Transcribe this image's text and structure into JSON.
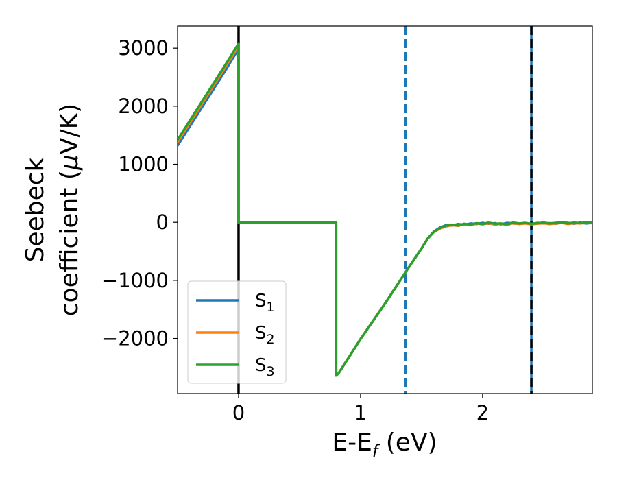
{
  "chart_data": {
    "type": "line",
    "xlabel": "E-E$_f$ (eV)",
    "xlabel_main": "E-E",
    "xlabel_sub": "f",
    "xlabel_tail": " (eV)",
    "ylabel_line1": "Seebeck",
    "ylabel_line2_a": "coefficient  (",
    "ylabel_line2_mu": "μ",
    "ylabel_line2_b": "V/K)",
    "xlim": [
      -0.5,
      2.9
    ],
    "ylim": [
      -2950,
      3380
    ],
    "xticks": [
      0,
      1,
      2
    ],
    "xtick_labels": [
      "0",
      "1",
      "2"
    ],
    "yticks": [
      -2000,
      -1000,
      0,
      1000,
      2000,
      3000
    ],
    "ytick_labels": [
      "−2000",
      "−1000",
      "0",
      "1000",
      "2000",
      "3000"
    ],
    "grid": false,
    "legend_position": "lower-left",
    "series": [
      {
        "name": "S1",
        "legend_main": "S",
        "legend_sub": "1",
        "color": "#1f77b4",
        "x": [
          -0.5,
          -0.3,
          -0.1,
          0.0,
          0.0,
          0.02,
          0.2,
          0.4,
          0.6,
          0.8,
          0.8,
          0.82,
          1.0,
          1.2,
          1.4,
          1.5,
          1.55,
          1.6,
          1.65,
          1.7,
          1.75,
          1.8,
          1.85,
          1.9,
          1.95,
          2.0,
          2.05,
          2.1,
          2.15,
          2.2,
          2.25,
          2.3,
          2.35,
          2.4,
          2.45,
          2.5,
          2.55,
          2.6,
          2.65,
          2.7,
          2.75,
          2.8,
          2.85,
          2.9
        ],
        "y": [
          1320,
          1980,
          2640,
          2990,
          0,
          0,
          0,
          0,
          0,
          0,
          -2640,
          -2600,
          -2010,
          -1400,
          -760,
          -450,
          -280,
          -160,
          -90,
          -50,
          -55,
          -30,
          -45,
          -20,
          -30,
          -10,
          -25,
          -15,
          -35,
          -10,
          -20,
          -25,
          -15,
          -30,
          -10,
          -20,
          -15,
          -25,
          -5,
          -10,
          -25,
          -5,
          -20,
          -10
        ]
      },
      {
        "name": "S2",
        "legend_main": "S",
        "legend_sub": "2",
        "color": "#ff7f0e",
        "x": [
          -0.5,
          -0.3,
          -0.1,
          0.0,
          0.0,
          0.02,
          0.2,
          0.4,
          0.6,
          0.8,
          0.8,
          0.82,
          1.0,
          1.2,
          1.4,
          1.5,
          1.55,
          1.6,
          1.65,
          1.7,
          1.75,
          1.8,
          1.85,
          1.9,
          1.95,
          2.0,
          2.05,
          2.1,
          2.15,
          2.2,
          2.25,
          2.3,
          2.35,
          2.4,
          2.45,
          2.5,
          2.55,
          2.6,
          2.65,
          2.7,
          2.75,
          2.8,
          2.85,
          2.9
        ],
        "y": [
          1380,
          2040,
          2700,
          3040,
          0,
          0,
          0,
          0,
          0,
          0,
          -2640,
          -2600,
          -2010,
          -1400,
          -760,
          -450,
          -280,
          -170,
          -110,
          -70,
          -50,
          -60,
          -30,
          -50,
          -20,
          -35,
          -15,
          -40,
          -25,
          -45,
          -15,
          -30,
          -20,
          -35,
          -25,
          -15,
          -30,
          -20,
          -10,
          -30,
          -15,
          -20,
          -10,
          -15
        ]
      },
      {
        "name": "S3",
        "legend_main": "S",
        "legend_sub": "3",
        "color": "#2ca02c",
        "x": [
          -0.5,
          -0.3,
          -0.1,
          0.0,
          0.0,
          0.02,
          0.2,
          0.4,
          0.6,
          0.8,
          0.8,
          0.82,
          1.0,
          1.2,
          1.4,
          1.5,
          1.55,
          1.6,
          1.65,
          1.7,
          1.75,
          1.8,
          1.85,
          1.9,
          1.95,
          2.0,
          2.05,
          2.1,
          2.15,
          2.2,
          2.25,
          2.3,
          2.35,
          2.4,
          2.45,
          2.5,
          2.55,
          2.6,
          2.65,
          2.7,
          2.75,
          2.8,
          2.85,
          2.9
        ],
        "y": [
          1420,
          2080,
          2740,
          3080,
          0,
          0,
          0,
          0,
          0,
          0,
          -2640,
          -2600,
          -2010,
          -1400,
          -760,
          -450,
          -280,
          -165,
          -100,
          -60,
          -40,
          -55,
          -25,
          -40,
          -15,
          -30,
          -5,
          -25,
          -20,
          -35,
          -5,
          -20,
          -10,
          -25,
          -15,
          -5,
          -20,
          -10,
          0,
          -20,
          -5,
          -15,
          0,
          -5
        ]
      }
    ],
    "vertical_lines": [
      {
        "x": 0.0,
        "color": "#000000",
        "style": "solid"
      },
      {
        "x": 1.37,
        "color": "#1f77b4",
        "style": "dashed"
      },
      {
        "x": 2.4,
        "color": "#1f77b4",
        "style": "solid"
      },
      {
        "x": 2.4,
        "color": "#000000",
        "style": "dashed"
      }
    ]
  }
}
